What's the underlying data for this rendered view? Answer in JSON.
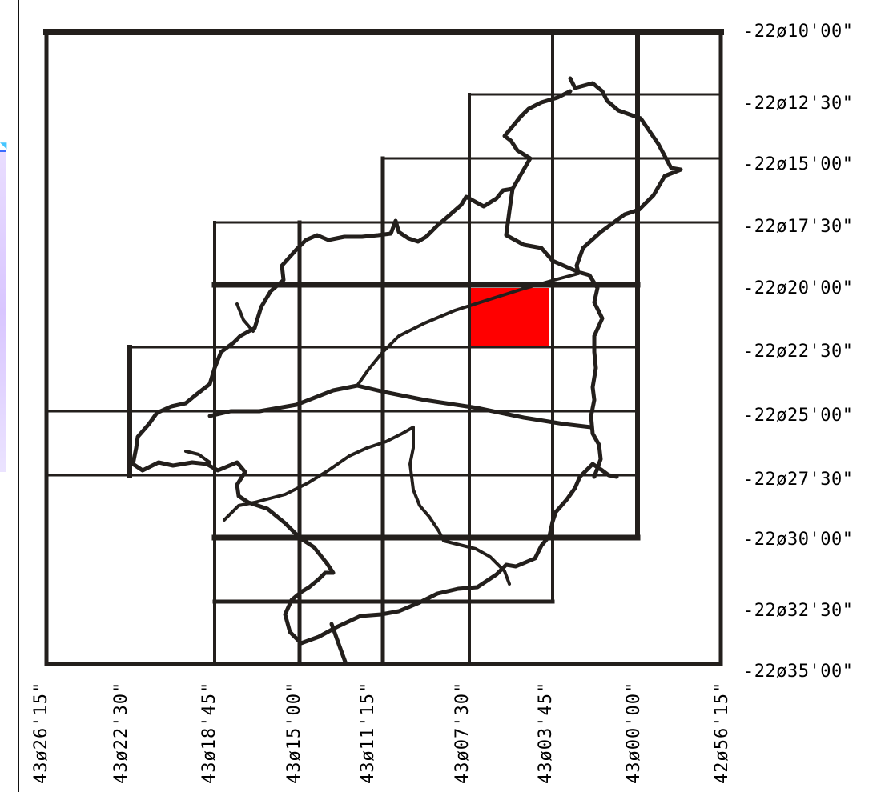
{
  "map": {
    "latitude_labels": [
      "-22ø10'00\"",
      "-22ø12'30\"",
      "-22ø15'00\"",
      "-22ø17'30\"",
      "-22ø20'00\"",
      "-22ø22'30\"",
      "-22ø25'00\"",
      "-22ø27'30\"",
      "-22ø30'00\"",
      "-22ø32'30\"",
      "-22ø35'00\""
    ],
    "longitude_labels": [
      "43ø26'15\"",
      "43ø22'30\"",
      "43ø18'45\"",
      "43ø15'00\"",
      "43ø11'15\"",
      "43ø07'30\"",
      "43ø03'45\"",
      "43ø00'00\"",
      "42ø56'15\""
    ],
    "highlighted_cell": {
      "color": "#ff0000"
    },
    "line_color": "#231f1c"
  }
}
